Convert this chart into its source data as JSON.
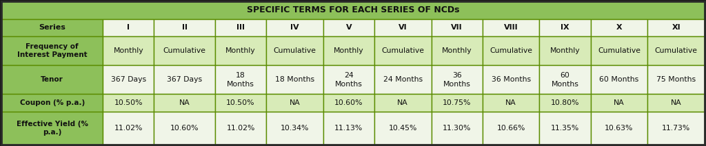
{
  "title": "SPECIFIC TERMS FOR EACH SERIES OF NCDs",
  "title_bg": "#8DC05A",
  "label_col_bg": "#8DC05A",
  "series_row_bg": "#8DC05A",
  "data_bg_light": "#F0F5E8",
  "data_bg_medium": "#D8EBB8",
  "border_color": "#5A8C00",
  "columns": [
    "Series",
    "I",
    "II",
    "III",
    "IV",
    "V",
    "VI",
    "VII",
    "VIII",
    "IX",
    "X",
    "XI"
  ],
  "rows": [
    {
      "label": "Frequency of\nInterest Payment",
      "values": [
        "Monthly",
        "Cumulative",
        "Monthly",
        "Cumulative",
        "Monthly",
        "Cumulative",
        "Monthly",
        "Cumulative",
        "Monthly",
        "Cumulative",
        "Cumulative"
      ]
    },
    {
      "label": "Tenor",
      "values": [
        "367 Days",
        "367 Days",
        "18\nMonths",
        "18 Months",
        "24\nMonths",
        "24 Months",
        "36\nMonths",
        "36 Months",
        "60\nMonths",
        "60 Months",
        "75 Months"
      ]
    },
    {
      "label": "Coupon (% p.a.)",
      "values": [
        "10.50%",
        "NA",
        "10.50%",
        "NA",
        "10.60%",
        "NA",
        "10.75%",
        "NA",
        "10.80%",
        "NA",
        "NA"
      ]
    },
    {
      "label": "Effective Yield (%\np.a.)",
      "values": [
        "11.02%",
        "10.60%",
        "11.02%",
        "10.34%",
        "11.13%",
        "10.45%",
        "11.30%",
        "10.66%",
        "11.35%",
        "10.63%",
        "11.73%"
      ]
    }
  ],
  "col_widths": [
    1.55,
    0.78,
    0.93,
    0.78,
    0.87,
    0.78,
    0.87,
    0.78,
    0.87,
    0.78,
    0.87,
    0.87
  ]
}
